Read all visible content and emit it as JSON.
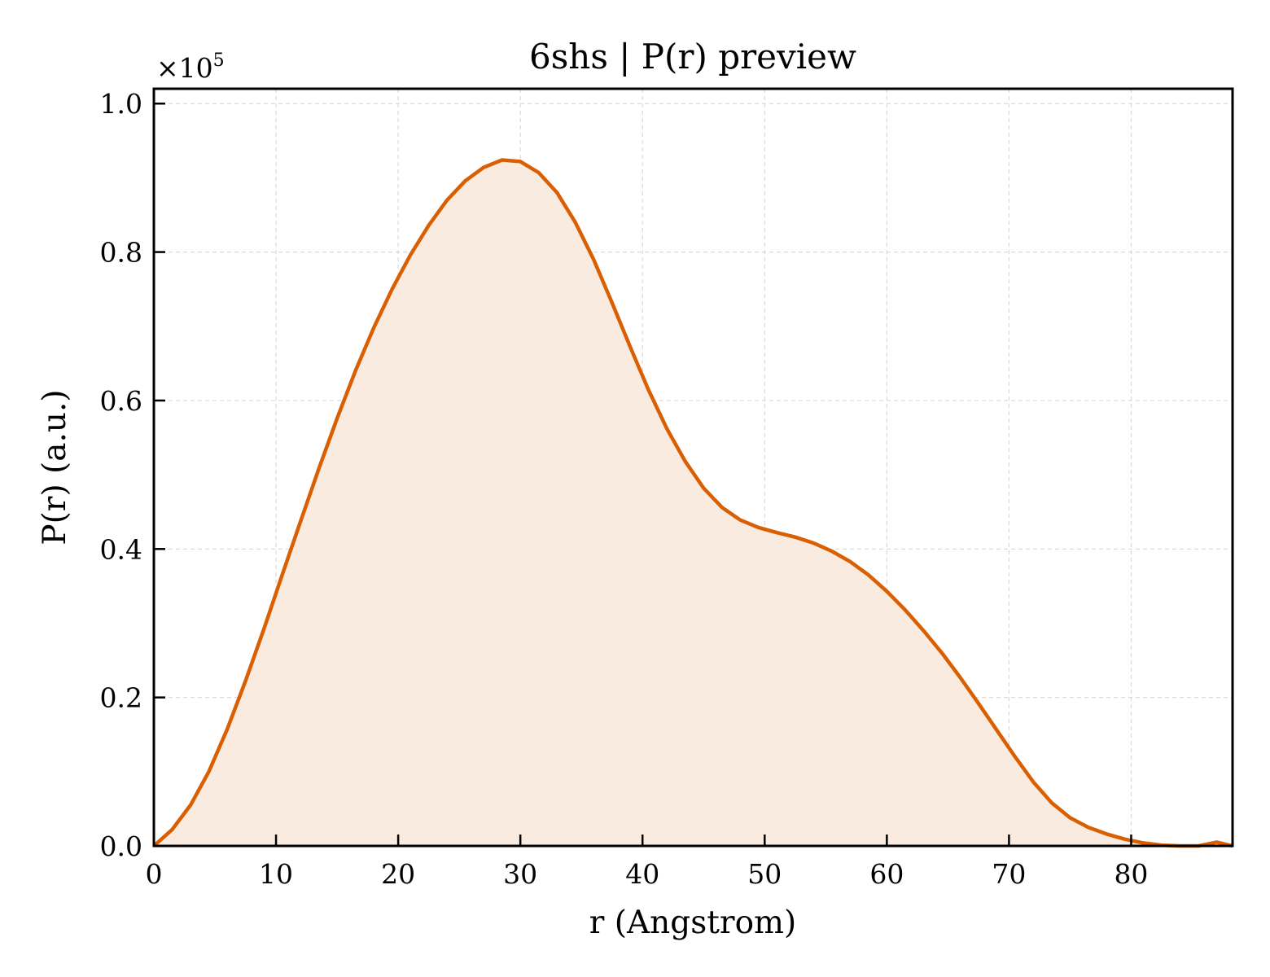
{
  "chart_data": {
    "type": "area",
    "title": "6shs | P(r) preview",
    "xlabel": "r (Angstrom)",
    "ylabel": "P(r) (a.u.)",
    "y_offset_base": "×10",
    "y_offset_exp": "5",
    "xlim": [
      0,
      88.3
    ],
    "ylim": [
      0,
      1.02
    ],
    "x_ticks": [
      0,
      10,
      20,
      30,
      40,
      50,
      60,
      70,
      80
    ],
    "x_tick_labels": [
      "0",
      "10",
      "20",
      "30",
      "40",
      "50",
      "60",
      "70",
      "80"
    ],
    "y_ticks": [
      0.0,
      0.2,
      0.4,
      0.6,
      0.8,
      1.0
    ],
    "y_tick_labels": [
      "0.0",
      "0.2",
      "0.4",
      "0.6",
      "0.8",
      "1.0"
    ],
    "grid": true,
    "colors": {
      "line": "#d95f02",
      "fill": "#f9ebe0",
      "grid": "#d9d9d9",
      "axes": "#000000"
    },
    "series": [
      {
        "x": [
          0,
          1.5,
          3,
          4.5,
          6,
          7.5,
          9,
          10.5,
          12,
          13.5,
          15,
          16.5,
          18,
          19.5,
          21,
          22.5,
          24,
          25.5,
          27,
          28.5,
          30,
          31.5,
          33,
          34.5,
          36,
          37.5,
          39,
          40.5,
          42,
          43.5,
          45,
          46.5,
          48,
          49.5,
          51,
          52.5,
          54,
          55.5,
          57,
          58.5,
          60,
          61.5,
          63,
          64.5,
          66,
          67.5,
          69,
          70.5,
          72,
          73.5,
          75,
          76.5,
          78,
          79.5,
          81,
          82.5,
          84,
          85.5,
          87,
          88.3
        ],
        "y": [
          0.0,
          0.022,
          0.055,
          0.1,
          0.157,
          0.222,
          0.292,
          0.365,
          0.437,
          0.508,
          0.576,
          0.64,
          0.698,
          0.75,
          0.796,
          0.836,
          0.87,
          0.896,
          0.914,
          0.924,
          0.922,
          0.907,
          0.88,
          0.84,
          0.79,
          0.732,
          0.672,
          0.614,
          0.562,
          0.518,
          0.482,
          0.456,
          0.439,
          0.429,
          0.422,
          0.416,
          0.408,
          0.397,
          0.383,
          0.365,
          0.343,
          0.318,
          0.29,
          0.26,
          0.227,
          0.192,
          0.156,
          0.12,
          0.086,
          0.058,
          0.038,
          0.025,
          0.016,
          0.009,
          0.004,
          0.001,
          0.0,
          0.0,
          0.005,
          0.0
        ]
      }
    ]
  }
}
